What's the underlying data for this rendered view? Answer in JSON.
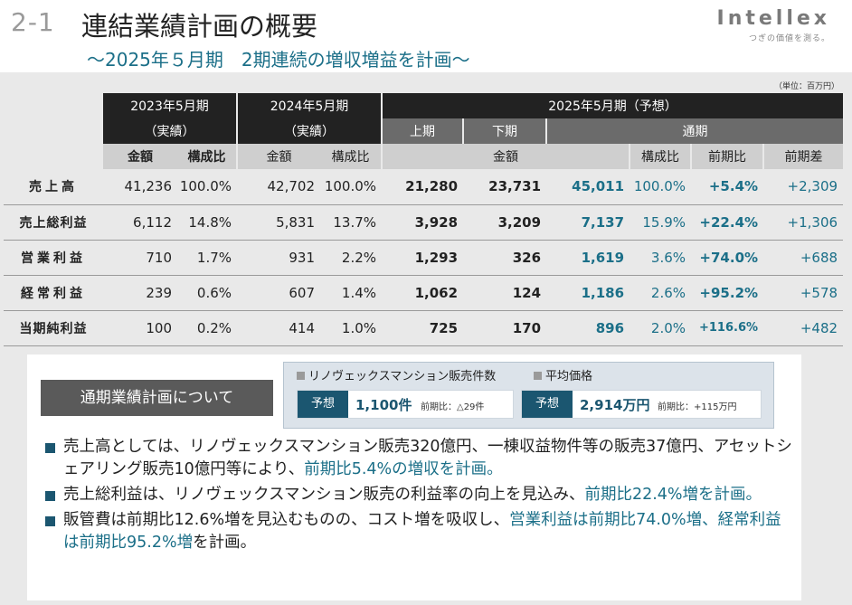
{
  "header": {
    "section_number": "2-1",
    "title": "連結業績計画の概要",
    "subtitle": "～2025年５月期　2期連続の増収増益を計画～",
    "logo_text": "Intellex",
    "logo_tagline": "つぎの価値を測る。"
  },
  "unit_note": "（単位：百万円）",
  "table": {
    "periods": {
      "fy2023": "2023年5月期",
      "fy2024": "2024年5月期",
      "fy2025": "2025年5月期（予想）"
    },
    "actual_label": "（実績）",
    "h1": "上期",
    "h2": "下期",
    "full_year": "通期",
    "col_amount": "金額",
    "col_ratio": "構成比",
    "col_yoy": "前期比",
    "col_diff": "前期差",
    "rows": [
      {
        "label": "売上高",
        "a23": "41,236",
        "r23": "100.0%",
        "a24": "42,702",
        "r24": "100.0%",
        "h1": "21,280",
        "h2": "23,731",
        "fy": "45,011",
        "fr": "100.0%",
        "yoy": "+5.4%",
        "diff": "+2,309"
      },
      {
        "label": "売上総利益",
        "a23": "6,112",
        "r23": "14.8%",
        "a24": "5,831",
        "r24": "13.7%",
        "h1": "3,928",
        "h2": "3,209",
        "fy": "7,137",
        "fr": "15.9%",
        "yoy": "+22.4%",
        "diff": "+1,306"
      },
      {
        "label": "営業利益",
        "a23": "710",
        "r23": "1.7%",
        "a24": "931",
        "r24": "2.2%",
        "h1": "1,293",
        "h2": "326",
        "fy": "1,619",
        "fr": "3.6%",
        "yoy": "+74.0%",
        "diff": "+688"
      },
      {
        "label": "経常利益",
        "a23": "239",
        "r23": "0.6%",
        "a24": "607",
        "r24": "1.4%",
        "h1": "1,062",
        "h2": "124",
        "fy": "1,186",
        "fr": "2.6%",
        "yoy": "+95.2%",
        "diff": "+578"
      },
      {
        "label": "当期純利益",
        "a23": "100",
        "r23": "0.2%",
        "a24": "414",
        "r24": "1.0%",
        "h1": "725",
        "h2": "170",
        "fy": "896",
        "fr": "2.0%",
        "yoy": "+116.6%",
        "diff": "+482"
      }
    ]
  },
  "plan": {
    "heading": "通期業績計画について",
    "kpi1_title": "リノヴェックスマンション販売件数",
    "kpi2_title": "平均価格",
    "forecast_tag": "予想",
    "kpi1_value": "1,100件",
    "kpi1_sub": "前期比：△29件",
    "kpi2_value": "2,914万円",
    "kpi2_sub": "前期比：+115万円",
    "b1_text": "売上高としては、リノヴェックスマンション販売320億円、一棟収益物件等の販売37億円、アセットシェアリング販売10億円等により、",
    "b1_highlight": "前期比5.4%の増収を計画。",
    "b2_text": "売上総利益は、リノヴェックスマンション販売の利益率の向上を見込み、",
    "b2_highlight": "前期比22.4%増を計画。",
    "b3_text": "販管費は前期比12.6%増を見込むものの、コスト増を吸収し、",
    "b3_highlight": "営業利益は前期比74.0%増、経常利益は前期比95.2%増",
    "b3_tail": "を計画。"
  }
}
